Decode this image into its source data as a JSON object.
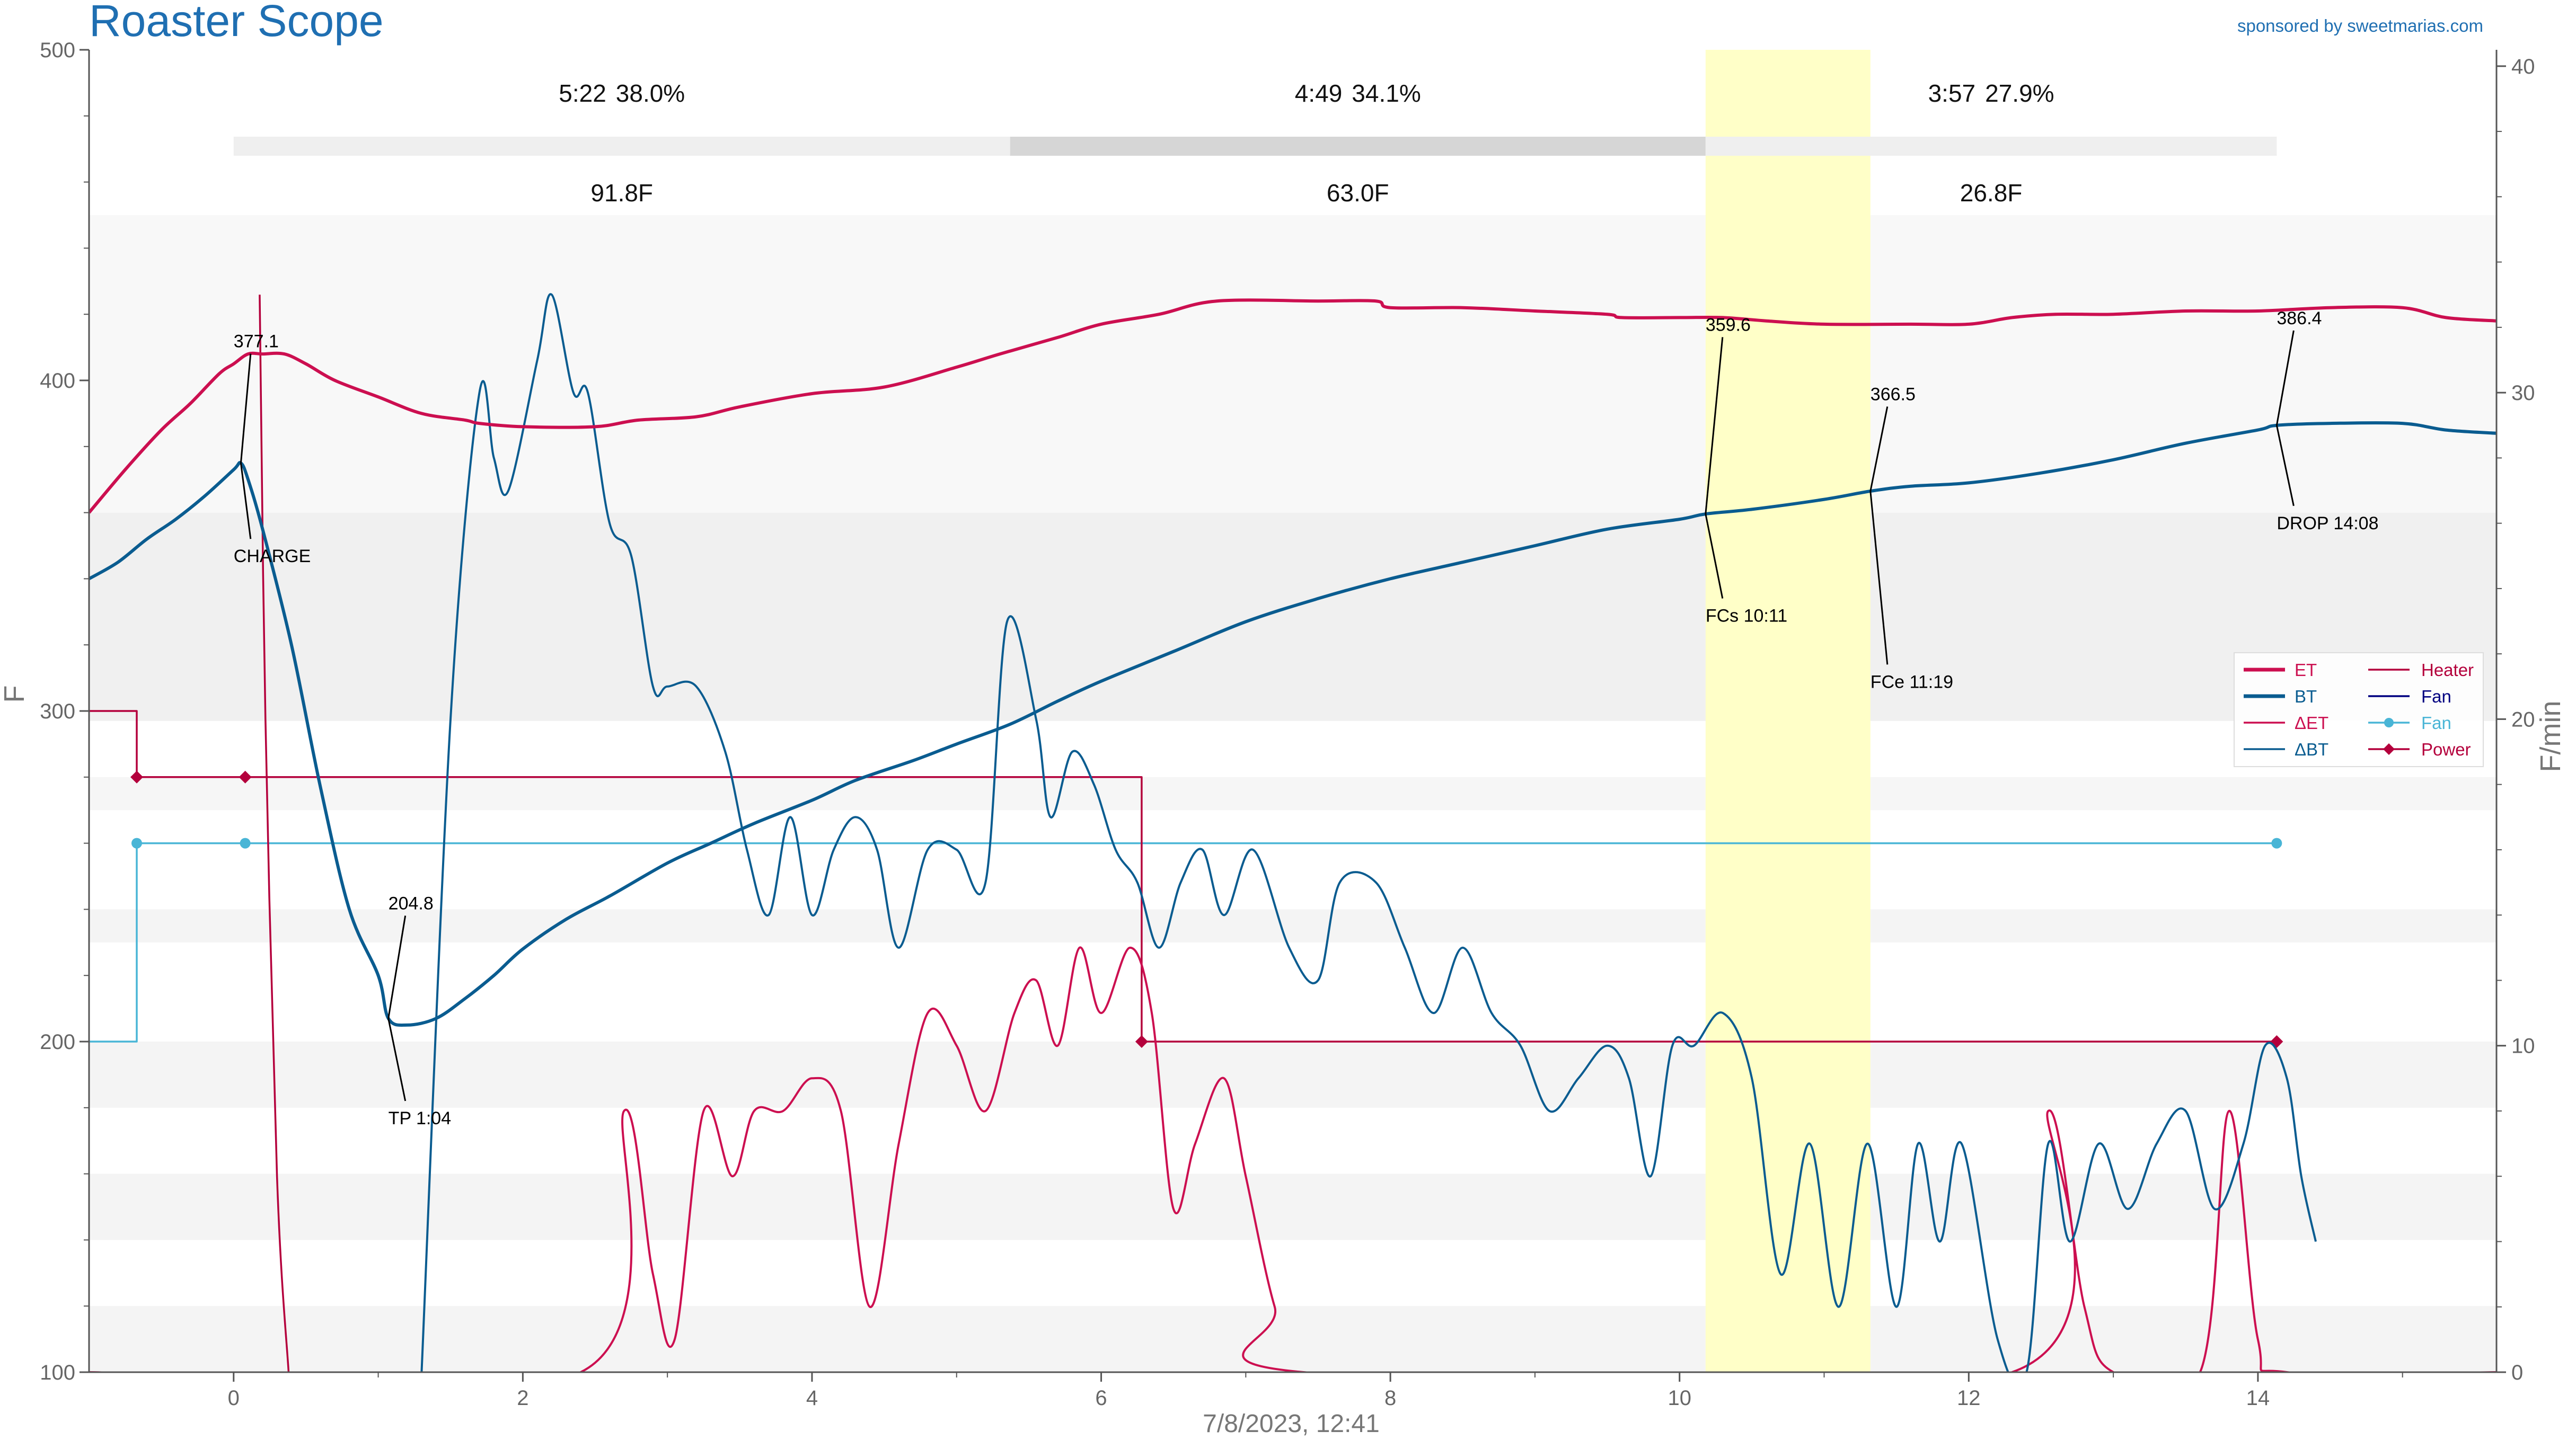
{
  "header": {
    "title": "Roaster Scope",
    "sponsor": "sponsored by sweetmarias.com"
  },
  "colors": {
    "et": "#cc0f50",
    "bt": "#0a5c90",
    "delta_et": "#cc0f50",
    "delta_bt": "#0a5c90",
    "heater": "#b4003c",
    "fan": "#000080",
    "fan_series": "#49b5d6",
    "power": "#b4003c",
    "title": "#1f6fb2",
    "fc_band": "#ffffc8"
  },
  "chart_data": {
    "type": "line",
    "xlabel": "7/8/2023, 12:41",
    "ylabel": "F",
    "y2label": "F/min",
    "xlim": [
      -1.0,
      15.65
    ],
    "ylim": [
      100,
      500
    ],
    "y2lim": [
      0,
      40.5
    ],
    "xticks": [
      0,
      2,
      4,
      6,
      8,
      10,
      12,
      14
    ],
    "xtick_labels": [
      "0",
      "2",
      "4",
      "6",
      "8",
      "10",
      "12",
      "14"
    ],
    "yticks": [
      100,
      200,
      300,
      400,
      500
    ],
    "ytick_labels": [
      "100",
      "200",
      "300",
      "400",
      "500"
    ],
    "y2ticks": [
      0,
      10,
      20,
      30,
      40
    ],
    "y2tick_labels": [
      "0",
      "10",
      "20",
      "30",
      "40"
    ],
    "legend_position": "right",
    "legend": {
      "col1": [
        {
          "label": "ET",
          "key": "et"
        },
        {
          "label": "BT",
          "key": "bt"
        },
        {
          "label": "ΔET",
          "key": "delta_et"
        },
        {
          "label": "ΔBT",
          "key": "delta_bt"
        }
      ],
      "col2": [
        {
          "label": "Heater",
          "key": "heater"
        },
        {
          "label": "Fan",
          "key": "fan"
        },
        {
          "label": "Fan",
          "key": "fan_series"
        },
        {
          "label": "Power",
          "key": "power"
        }
      ]
    },
    "phases": [
      {
        "time": "5:22",
        "percent": "38.0%",
        "delta": "91.8F",
        "x_start": 0.0,
        "x_end": 5.37
      },
      {
        "time": "4:49",
        "percent": "34.1%",
        "delta": "63.0F",
        "x_start": 5.37,
        "x_end": 10.18
      },
      {
        "time": "3:57",
        "percent": "27.9%",
        "delta": "26.8F",
        "x_start": 10.18,
        "x_end": 14.13
      }
    ],
    "first_crack_band": [
      10.18,
      11.32
    ],
    "series": [
      {
        "name": "ET",
        "key": "et",
        "axis": "left",
        "points": [
          [
            -1.0,
            360
          ],
          [
            -0.75,
            373
          ],
          [
            -0.5,
            385
          ],
          [
            -0.3,
            393
          ],
          [
            -0.1,
            402
          ],
          [
            0.0,
            405
          ],
          [
            0.1,
            408
          ],
          [
            0.2,
            408
          ],
          [
            0.35,
            408
          ],
          [
            0.5,
            405
          ],
          [
            0.7,
            400
          ],
          [
            1.0,
            395
          ],
          [
            1.3,
            390
          ],
          [
            1.6,
            388
          ],
          [
            1.7,
            387
          ],
          [
            2.0,
            386
          ],
          [
            2.5,
            386
          ],
          [
            2.8,
            388
          ],
          [
            3.2,
            389
          ],
          [
            3.5,
            392
          ],
          [
            4.0,
            396
          ],
          [
            4.5,
            398
          ],
          [
            5.0,
            404
          ],
          [
            5.3,
            408
          ],
          [
            5.7,
            413
          ],
          [
            6.0,
            417
          ],
          [
            6.4,
            420
          ],
          [
            6.8,
            424
          ],
          [
            7.5,
            424
          ],
          [
            7.9,
            424
          ],
          [
            8.0,
            422
          ],
          [
            8.5,
            422
          ],
          [
            9.0,
            421
          ],
          [
            9.5,
            420
          ],
          [
            9.6,
            419
          ],
          [
            10.0,
            419
          ],
          [
            10.3,
            419
          ],
          [
            10.6,
            418
          ],
          [
            11.0,
            417
          ],
          [
            11.6,
            417
          ],
          [
            12.0,
            417
          ],
          [
            12.3,
            419
          ],
          [
            12.6,
            420
          ],
          [
            13.0,
            420
          ],
          [
            13.5,
            421
          ],
          [
            14.0,
            421
          ],
          [
            14.5,
            422
          ],
          [
            15.0,
            422
          ],
          [
            15.3,
            419
          ],
          [
            15.65,
            418
          ]
        ]
      },
      {
        "name": "BT",
        "key": "bt",
        "axis": "left",
        "points": [
          [
            -1.0,
            340
          ],
          [
            -0.8,
            345
          ],
          [
            -0.6,
            352
          ],
          [
            -0.4,
            358
          ],
          [
            -0.2,
            365
          ],
          [
            0.0,
            373
          ],
          [
            0.05,
            375
          ],
          [
            0.1,
            370
          ],
          [
            0.2,
            355
          ],
          [
            0.4,
            320
          ],
          [
            0.6,
            277
          ],
          [
            0.8,
            240
          ],
          [
            1.0,
            220
          ],
          [
            1.07,
            207
          ],
          [
            1.2,
            205
          ],
          [
            1.4,
            207
          ],
          [
            1.6,
            213
          ],
          [
            1.8,
            220
          ],
          [
            2.0,
            228
          ],
          [
            2.3,
            237
          ],
          [
            2.6,
            244
          ],
          [
            3.0,
            254
          ],
          [
            3.3,
            260
          ],
          [
            3.6,
            266
          ],
          [
            4.0,
            273
          ],
          [
            4.3,
            279
          ],
          [
            4.7,
            285
          ],
          [
            5.0,
            290
          ],
          [
            5.37,
            296
          ],
          [
            5.7,
            303
          ],
          [
            6.0,
            309
          ],
          [
            6.5,
            318
          ],
          [
            7.0,
            327
          ],
          [
            7.5,
            334
          ],
          [
            8.0,
            340
          ],
          [
            8.5,
            345
          ],
          [
            9.0,
            350
          ],
          [
            9.5,
            355
          ],
          [
            10.0,
            358
          ],
          [
            10.18,
            359.6
          ],
          [
            10.5,
            361
          ],
          [
            11.0,
            364
          ],
          [
            11.32,
            366.5
          ],
          [
            11.6,
            368
          ],
          [
            12.0,
            369
          ],
          [
            12.5,
            372
          ],
          [
            13.0,
            376
          ],
          [
            13.5,
            381
          ],
          [
            14.0,
            385
          ],
          [
            14.13,
            386.4
          ],
          [
            14.5,
            387
          ],
          [
            15.0,
            387
          ],
          [
            15.3,
            385
          ],
          [
            15.65,
            384
          ]
        ]
      },
      {
        "name": "ΔET",
        "key": "delta_et",
        "axis": "right",
        "points": [
          [
            -1.0,
            0
          ],
          [
            2.4,
            0
          ],
          [
            2.7,
            8
          ],
          [
            2.9,
            3
          ],
          [
            3.05,
            1
          ],
          [
            3.25,
            8
          ],
          [
            3.45,
            6
          ],
          [
            3.6,
            8
          ],
          [
            3.8,
            8
          ],
          [
            4.0,
            9
          ],
          [
            4.2,
            8
          ],
          [
            4.4,
            2
          ],
          [
            4.6,
            7
          ],
          [
            4.8,
            11
          ],
          [
            5.0,
            10
          ],
          [
            5.2,
            8
          ],
          [
            5.4,
            11
          ],
          [
            5.55,
            12
          ],
          [
            5.7,
            10
          ],
          [
            5.85,
            13
          ],
          [
            6.0,
            11
          ],
          [
            6.2,
            13
          ],
          [
            6.35,
            11
          ],
          [
            6.5,
            5
          ],
          [
            6.65,
            7
          ],
          [
            6.85,
            9
          ],
          [
            7.0,
            6
          ],
          [
            7.2,
            2
          ],
          [
            7.4,
            0
          ],
          [
            12.3,
            0
          ],
          [
            12.55,
            8
          ],
          [
            12.8,
            2
          ],
          [
            13.0,
            0
          ],
          [
            13.6,
            0
          ],
          [
            13.8,
            8
          ],
          [
            14.0,
            1
          ],
          [
            14.2,
            0
          ],
          [
            15.65,
            0
          ]
        ]
      },
      {
        "name": "ΔBT",
        "key": "delta_bt",
        "axis": "right",
        "points": [
          [
            1.3,
            0
          ],
          [
            1.5,
            20
          ],
          [
            1.7,
            30
          ],
          [
            1.8,
            28
          ],
          [
            1.9,
            27
          ],
          [
            2.1,
            31
          ],
          [
            2.2,
            33
          ],
          [
            2.35,
            30
          ],
          [
            2.45,
            30
          ],
          [
            2.6,
            26
          ],
          [
            2.75,
            25
          ],
          [
            2.9,
            21
          ],
          [
            3.0,
            21
          ],
          [
            3.2,
            21
          ],
          [
            3.4,
            19
          ],
          [
            3.55,
            16
          ],
          [
            3.7,
            14
          ],
          [
            3.85,
            17
          ],
          [
            4.0,
            14
          ],
          [
            4.15,
            16
          ],
          [
            4.3,
            17
          ],
          [
            4.45,
            16
          ],
          [
            4.6,
            13
          ],
          [
            4.8,
            16
          ],
          [
            5.0,
            16
          ],
          [
            5.2,
            15
          ],
          [
            5.35,
            23
          ],
          [
            5.55,
            20
          ],
          [
            5.65,
            17
          ],
          [
            5.8,
            19
          ],
          [
            5.95,
            18
          ],
          [
            6.1,
            16
          ],
          [
            6.25,
            15
          ],
          [
            6.4,
            13
          ],
          [
            6.55,
            15
          ],
          [
            6.7,
            16
          ],
          [
            6.85,
            14
          ],
          [
            7.05,
            16
          ],
          [
            7.3,
            13
          ],
          [
            7.5,
            12
          ],
          [
            7.65,
            15
          ],
          [
            7.9,
            15
          ],
          [
            8.1,
            13
          ],
          [
            8.3,
            11
          ],
          [
            8.5,
            13
          ],
          [
            8.7,
            11
          ],
          [
            8.9,
            10
          ],
          [
            9.1,
            8
          ],
          [
            9.3,
            9
          ],
          [
            9.5,
            10
          ],
          [
            9.65,
            9
          ],
          [
            9.8,
            6
          ],
          [
            9.95,
            10
          ],
          [
            10.1,
            10
          ],
          [
            10.3,
            11
          ],
          [
            10.5,
            9
          ],
          [
            10.7,
            3
          ],
          [
            10.9,
            7
          ],
          [
            11.1,
            2
          ],
          [
            11.3,
            7
          ],
          [
            11.5,
            2
          ],
          [
            11.65,
            7
          ],
          [
            11.8,
            4
          ],
          [
            11.95,
            7
          ],
          [
            12.2,
            1
          ],
          [
            12.4,
            0
          ],
          [
            12.55,
            7
          ],
          [
            12.7,
            4
          ],
          [
            12.9,
            7
          ],
          [
            13.1,
            5
          ],
          [
            13.3,
            7
          ],
          [
            13.5,
            8
          ],
          [
            13.7,
            5
          ],
          [
            13.9,
            7
          ],
          [
            14.05,
            10
          ],
          [
            14.2,
            9
          ],
          [
            14.3,
            6
          ],
          [
            14.4,
            4
          ]
        ]
      },
      {
        "name": "Power",
        "key": "power",
        "axis": "left",
        "marker": "diamond",
        "points": [
          [
            -1.0,
            300
          ],
          [
            -0.67,
            300
          ],
          [
            -0.67,
            280
          ],
          [
            6.28,
            280
          ],
          [
            6.28,
            200
          ],
          [
            14.13,
            200
          ]
        ],
        "markers": [
          [
            -0.67,
            280
          ],
          [
            0.08,
            280
          ],
          [
            6.28,
            200
          ],
          [
            14.13,
            200
          ]
        ]
      },
      {
        "name": "Fan",
        "key": "fan_series",
        "axis": "left",
        "marker": "circle",
        "points": [
          [
            -1.0,
            200
          ],
          [
            -0.67,
            200
          ],
          [
            -0.67,
            260
          ],
          [
            14.13,
            260
          ]
        ],
        "markers": [
          [
            -0.67,
            260
          ],
          [
            0.08,
            260
          ],
          [
            14.13,
            260
          ]
        ]
      },
      {
        "name": "Heater",
        "key": "heater",
        "axis": "right",
        "points": [
          [
            0.18,
            33
          ],
          [
            0.22,
            20
          ],
          [
            0.3,
            6
          ],
          [
            0.38,
            0
          ]
        ]
      }
    ],
    "annotations": [
      {
        "label": "377.1",
        "x": 0.05,
        "y": 375,
        "text_x": 0.0,
        "text_y": 410
      },
      {
        "label": "CHARGE",
        "x": 0.05,
        "y": 375,
        "text_x": 0.0,
        "text_y": 345
      },
      {
        "label": "204.8",
        "x": 1.07,
        "y": 207,
        "text_x": 1.07,
        "text_y": 240
      },
      {
        "label": "TP 1:04",
        "x": 1.07,
        "y": 207,
        "text_x": 1.07,
        "text_y": 175
      },
      {
        "label": "359.6",
        "x": 10.18,
        "y": 359.6,
        "text_x": 10.18,
        "text_y": 415
      },
      {
        "label": "FCs 10:11",
        "x": 10.18,
        "y": 359.6,
        "text_x": 10.18,
        "text_y": 327
      },
      {
        "label": "366.5",
        "x": 11.32,
        "y": 366.5,
        "text_x": 11.32,
        "text_y": 394
      },
      {
        "label": "FCe 11:19",
        "x": 11.32,
        "y": 366.5,
        "text_x": 11.32,
        "text_y": 307
      },
      {
        "label": "386.4",
        "x": 14.13,
        "y": 386.4,
        "text_x": 14.13,
        "text_y": 417
      },
      {
        "label": "DROP 14:08",
        "x": 14.13,
        "y": 386.4,
        "text_x": 14.13,
        "text_y": 355
      }
    ]
  }
}
